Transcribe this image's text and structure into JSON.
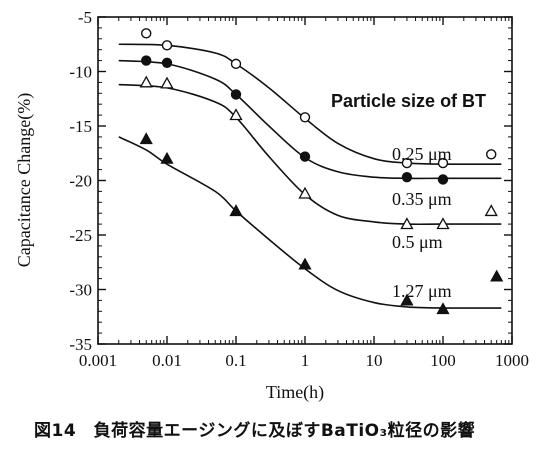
{
  "chart_data": {
    "type": "scatter",
    "xlabel": "Time(h)",
    "ylabel": "Capacitance Change(%)",
    "x_scale": "log",
    "xlim": [
      0.001,
      1000
    ],
    "ylim": [
      -35,
      -5
    ],
    "x_ticks": [
      "0.001",
      "0.01",
      "0.1",
      "1",
      "10",
      "100",
      "1000"
    ],
    "y_ticks": [
      "-5",
      "-10",
      "-15",
      "-20",
      "-25",
      "-30",
      "-35"
    ],
    "legend_title": "Particle size of BT",
    "series": [
      {
        "name": "0.25 μm",
        "marker": "open-circle",
        "points": [
          [
            0.005,
            -6.5
          ],
          [
            0.01,
            -7.6
          ],
          [
            0.1,
            -9.3
          ],
          [
            1,
            -14.2
          ],
          [
            30,
            -18.4
          ],
          [
            100,
            -18.4
          ],
          [
            500,
            -17.6
          ]
        ],
        "curve": [
          [
            0.002,
            -7.5
          ],
          [
            0.01,
            -7.6
          ],
          [
            0.05,
            -8.3
          ],
          [
            0.1,
            -9.3
          ],
          [
            0.3,
            -11.5
          ],
          [
            1,
            -14.3
          ],
          [
            3,
            -16.6
          ],
          [
            10,
            -18.0
          ],
          [
            30,
            -18.4
          ],
          [
            100,
            -18.5
          ],
          [
            700,
            -18.5
          ]
        ]
      },
      {
        "name": "0.35 μm",
        "marker": "filled-circle",
        "points": [
          [
            0.005,
            -9.0
          ],
          [
            0.01,
            -9.2
          ],
          [
            0.1,
            -12.1
          ],
          [
            1,
            -17.8
          ],
          [
            30,
            -19.7
          ],
          [
            100,
            -19.9
          ]
        ],
        "curve": [
          [
            0.002,
            -9.0
          ],
          [
            0.01,
            -9.3
          ],
          [
            0.05,
            -10.7
          ],
          [
            0.1,
            -12.1
          ],
          [
            0.3,
            -15.0
          ],
          [
            1,
            -17.9
          ],
          [
            3,
            -19.2
          ],
          [
            10,
            -19.7
          ],
          [
            30,
            -19.8
          ],
          [
            100,
            -19.8
          ],
          [
            700,
            -19.8
          ]
        ]
      },
      {
        "name": "0.5 μm",
        "marker": "open-triangle",
        "points": [
          [
            0.005,
            -11.0
          ],
          [
            0.01,
            -11.1
          ],
          [
            0.1,
            -14.0
          ],
          [
            1,
            -21.2
          ],
          [
            30,
            -24.0
          ],
          [
            100,
            -24.0
          ],
          [
            500,
            -22.8
          ]
        ],
        "curve": [
          [
            0.002,
            -11.2
          ],
          [
            0.01,
            -11.5
          ],
          [
            0.05,
            -12.8
          ],
          [
            0.1,
            -14.2
          ],
          [
            0.3,
            -17.8
          ],
          [
            1,
            -21.3
          ],
          [
            3,
            -23.2
          ],
          [
            10,
            -23.8
          ],
          [
            30,
            -24.0
          ],
          [
            100,
            -24.0
          ],
          [
            700,
            -24.0
          ]
        ]
      },
      {
        "name": "1.27 μm",
        "marker": "filled-triangle",
        "points": [
          [
            0.005,
            -16.2
          ],
          [
            0.01,
            -18.0
          ],
          [
            0.1,
            -22.8
          ],
          [
            1,
            -27.7
          ],
          [
            30,
            -31.0
          ],
          [
            100,
            -31.8
          ],
          [
            600,
            -28.8
          ]
        ],
        "curve": [
          [
            0.002,
            -16.0
          ],
          [
            0.005,
            -17.2
          ],
          [
            0.01,
            -18.5
          ],
          [
            0.05,
            -21.0
          ],
          [
            0.1,
            -22.8
          ],
          [
            0.3,
            -25.4
          ],
          [
            1,
            -28.1
          ],
          [
            3,
            -30.1
          ],
          [
            10,
            -31.2
          ],
          [
            30,
            -31.6
          ],
          [
            100,
            -31.7
          ],
          [
            700,
            -31.7
          ]
        ]
      }
    ]
  },
  "caption": "図14　負荷容量エージングに及ぼすBaTiO₃粒径の影響"
}
